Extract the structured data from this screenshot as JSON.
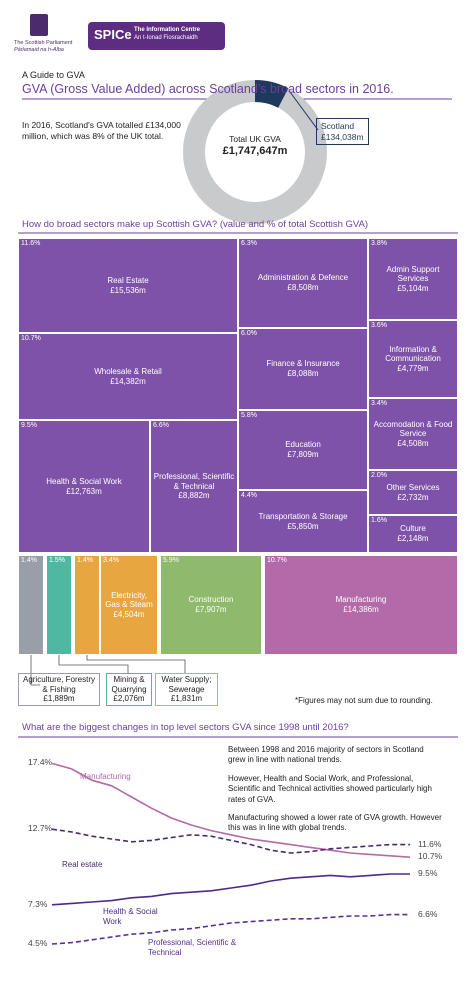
{
  "header": {
    "logo_lines": [
      "The Scottish Parliament",
      "Pàrlamaid na h-Alba"
    ],
    "badge": "SPICe",
    "badge_lines": [
      "The Information Centre",
      "An t-Ionad Fiosrachaidh"
    ],
    "kicker": "A Guide to GVA",
    "title": "GVA (Gross Value Added) across Scotland’s broad sectors in 2016."
  },
  "intro": "In 2016, Scotland's GVA totalled £134,000 million,  which was 8% of the UK total.",
  "chart_data": [
    {
      "type": "donut",
      "center_label": "Total UK GVA",
      "total": 1747647,
      "total_label": "£1,747,647m",
      "base_color": "#c9cacc",
      "series": [
        {
          "name": "Scotland",
          "color": "#1d3a5c",
          "values": [
            134038
          ],
          "value_labels": [
            "£134,038m"
          ]
        }
      ]
    },
    {
      "type": "treemap",
      "title": "How do broad sectors make up Scottish GVA? (value and % of total Scottish GVA)",
      "categories": [
        "Real Estate",
        "Administration & Defence",
        "Admin Support Services",
        "Wholesale & Retail",
        "Finance & Insurance",
        "Information & Communication",
        "Health & Social Work",
        "Professional, Scientific & Technical",
        "Education",
        "Accomodation & Food Service",
        "Other Services",
        "Transportation & Storage",
        "Culture",
        "Agriculture, Forestry & Fishing",
        "Mining & Quarrying",
        "Water Supply; Sewerage",
        "Electricity, Gas & Steam",
        "Construction",
        "Manufacturing"
      ],
      "values": [
        15536,
        8508,
        5104,
        14382,
        8088,
        4779,
        12763,
        8882,
        7809,
        4508,
        2732,
        5850,
        2148,
        1889,
        2076,
        1831,
        4504,
        7907,
        14386
      ],
      "value_labels": [
        "£15,536m",
        "£8,508m",
        "£5,104m",
        "£14,382m",
        "£8,088m",
        "£4,779m",
        "£12,763m",
        "£8,882m",
        "£7,809m",
        "£4,508m",
        "£2,732m",
        "£5,850m",
        "£2,148m",
        "£1,889m",
        "£2,076m",
        "£1,831m",
        "£4,504m",
        "£7,907m",
        "£14,386m"
      ],
      "shares": [
        11.6,
        6.3,
        3.8,
        10.7,
        6.0,
        3.6,
        9.5,
        6.6,
        5.8,
        3.4,
        2.0,
        4.4,
        1.6,
        1.4,
        1.5,
        1.4,
        3.4,
        5.9,
        10.7
      ],
      "share_labels": [
        "11.6%",
        "6.3%",
        "3.8%",
        "10.7%",
        "6.0%",
        "3.6%",
        "9.5%",
        "6.6%",
        "5.8%",
        "3.4%",
        "2.0%",
        "4.4%",
        "1.6%",
        "1.4%",
        "1.5%",
        "1.4%",
        "3.4%",
        "5.9%",
        "10.7%"
      ],
      "colors": [
        "#7e52a8",
        "#7e52a8",
        "#7e52a8",
        "#7e52a8",
        "#7e52a8",
        "#7e52a8",
        "#7e52a8",
        "#7e52a8",
        "#7e52a8",
        "#7e52a8",
        "#7e52a8",
        "#7e52a8",
        "#7e52a8",
        "#9a9ea8",
        "#4fb8a3",
        "#e8a640",
        "#e8a640",
        "#8fb96b",
        "#b26aa8"
      ],
      "note": "*Figures may not sum due to rounding."
    },
    {
      "type": "line",
      "title": "What are the biggest changes in top level sectors GVA since 1998 until 2016?",
      "annotations": [
        "Between 1998 and 2016 majority of sectors in Scotland grew in line with national trends.",
        "However, Health and Social Work, and Professional, Scientific and Technical activities showed particularly high rates of GVA.",
        "Manufacturing showed a lower rate of GVA growth. However this was in line with global trends."
      ],
      "ylim": [
        3,
        18
      ],
      "series": [
        {
          "name": "Manufacturing",
          "color": "#b26aa8",
          "line_style": "solid",
          "values": [
            17.4,
            17.0,
            16.2,
            15.8,
            15.0,
            14.2,
            13.5,
            13.0,
            12.6,
            12.3,
            12.0,
            11.8,
            11.6,
            11.4,
            11.2,
            11.0,
            10.9,
            10.8,
            10.7
          ],
          "value_labels": [
            "17.4%",
            null,
            null,
            null,
            null,
            null,
            null,
            null,
            null,
            null,
            null,
            null,
            null,
            null,
            null,
            null,
            null,
            null,
            "10.7%"
          ]
        },
        {
          "name": "Real estate",
          "color": "#4b2a6e",
          "line_style": "dashed",
          "values": [
            12.7,
            12.5,
            12.2,
            12.0,
            11.8,
            11.9,
            12.1,
            12.3,
            12.2,
            11.9,
            11.6,
            11.2,
            11.0,
            11.1,
            11.3,
            11.4,
            11.5,
            11.6,
            11.6
          ],
          "value_labels": [
            "12.7%",
            null,
            null,
            null,
            null,
            null,
            null,
            null,
            null,
            null,
            null,
            null,
            null,
            null,
            null,
            null,
            null,
            null,
            "11.6%"
          ]
        },
        {
          "name": "Health & Social Work",
          "color": "#4b2a8a",
          "line_style": "solid",
          "values": [
            7.3,
            7.4,
            7.5,
            7.6,
            7.8,
            7.9,
            8.1,
            8.2,
            8.3,
            8.5,
            8.7,
            9.0,
            9.2,
            9.3,
            9.4,
            9.3,
            9.4,
            9.5,
            9.5
          ],
          "value_labels": [
            "7.3%",
            null,
            null,
            null,
            null,
            null,
            null,
            null,
            null,
            null,
            null,
            null,
            null,
            null,
            null,
            null,
            null,
            null,
            "9.5%"
          ]
        },
        {
          "name": "Professional, Scientific & Technical",
          "color": "#5a2f96",
          "line_style": "dashed",
          "values": [
            4.5,
            4.6,
            4.8,
            5.0,
            5.2,
            5.3,
            5.5,
            5.6,
            5.8,
            6.0,
            6.1,
            6.2,
            6.3,
            6.3,
            6.4,
            6.5,
            6.5,
            6.6,
            6.6
          ],
          "value_labels": [
            "4.5%",
            null,
            null,
            null,
            null,
            null,
            null,
            null,
            null,
            null,
            null,
            null,
            null,
            null,
            null,
            null,
            null,
            null,
            "6.6%"
          ]
        }
      ]
    }
  ]
}
